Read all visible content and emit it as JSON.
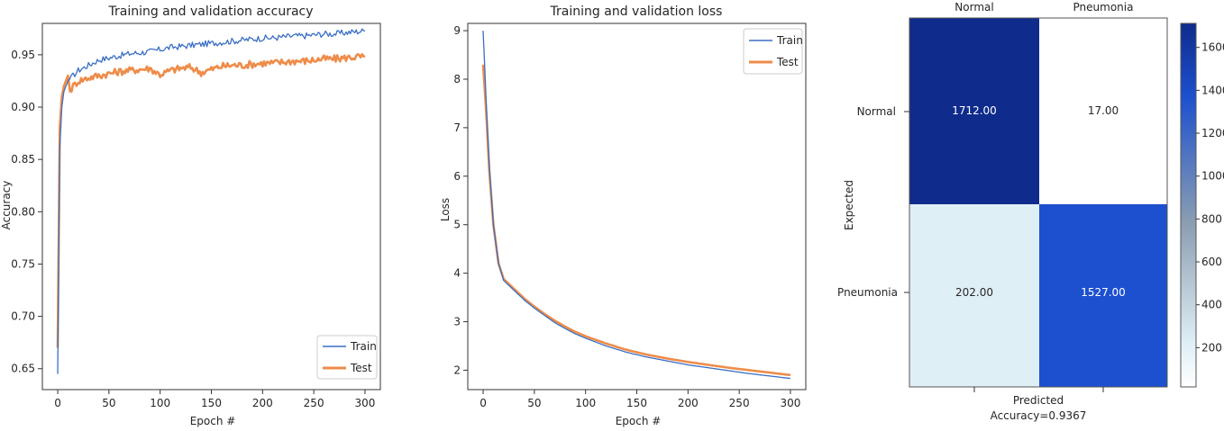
{
  "chart_data": [
    {
      "type": "line",
      "title": "Training and validation accuracy",
      "xlabel": "Epoch #",
      "ylabel": "Accuracy",
      "xlim": [
        -15,
        315
      ],
      "ylim": [
        0.63,
        0.98
      ],
      "xticks": [
        "0",
        "50",
        "100",
        "150",
        "200",
        "250",
        "300"
      ],
      "yticks": [
        "0.65",
        "0.70",
        "0.75",
        "0.80",
        "0.85",
        "0.90",
        "0.95"
      ],
      "legend": "lower-right",
      "series": [
        {
          "name": "Train",
          "color": "#3a6fc4",
          "x": [
            0,
            2,
            4,
            6,
            8,
            10,
            15,
            20,
            30,
            40,
            50,
            60,
            70,
            80,
            90,
            100,
            110,
            120,
            130,
            140,
            150,
            160,
            170,
            180,
            190,
            200,
            210,
            220,
            230,
            240,
            250,
            260,
            270,
            280,
            290,
            300
          ],
          "y": [
            0.645,
            0.86,
            0.9,
            0.915,
            0.92,
            0.925,
            0.93,
            0.935,
            0.94,
            0.945,
            0.947,
            0.949,
            0.951,
            0.952,
            0.953,
            0.955,
            0.957,
            0.958,
            0.959,
            0.96,
            0.961,
            0.962,
            0.963,
            0.964,
            0.965,
            0.966,
            0.966,
            0.967,
            0.968,
            0.968,
            0.969,
            0.97,
            0.97,
            0.971,
            0.972,
            0.973
          ]
        },
        {
          "name": "Test",
          "color": "#ee8c49",
          "x": [
            0,
            2,
            4,
            6,
            8,
            10,
            12,
            15,
            20,
            30,
            40,
            50,
            60,
            70,
            80,
            90,
            100,
            110,
            120,
            130,
            140,
            150,
            160,
            170,
            180,
            190,
            200,
            210,
            220,
            230,
            240,
            250,
            260,
            270,
            280,
            290,
            300
          ],
          "y": [
            0.67,
            0.88,
            0.91,
            0.92,
            0.925,
            0.93,
            0.915,
            0.92,
            0.925,
            0.928,
            0.93,
            0.932,
            0.934,
            0.935,
            0.936,
            0.937,
            0.931,
            0.935,
            0.937,
            0.938,
            0.933,
            0.936,
            0.939,
            0.94,
            0.94,
            0.941,
            0.942,
            0.942,
            0.943,
            0.944,
            0.944,
            0.945,
            0.946,
            0.946,
            0.947,
            0.948,
            0.948
          ]
        }
      ]
    },
    {
      "type": "line",
      "title": "Training and validation loss",
      "xlabel": "Epoch #",
      "ylabel": "Loss",
      "xlim": [
        -15,
        315
      ],
      "ylim": [
        1.6,
        9.15
      ],
      "xticks": [
        "0",
        "50",
        "100",
        "150",
        "200",
        "250",
        "300"
      ],
      "yticks": [
        "2",
        "3",
        "4",
        "5",
        "6",
        "7",
        "8",
        "9"
      ],
      "legend": "upper-right",
      "series": [
        {
          "name": "Train",
          "color": "#3a6fc4",
          "x": [
            0,
            3,
            6,
            10,
            15,
            20,
            30,
            40,
            50,
            60,
            70,
            80,
            90,
            100,
            120,
            140,
            160,
            180,
            200,
            220,
            240,
            260,
            280,
            300
          ],
          "y": [
            9.0,
            7.5,
            6.2,
            5.0,
            4.2,
            3.85,
            3.65,
            3.45,
            3.28,
            3.13,
            2.98,
            2.86,
            2.75,
            2.66,
            2.5,
            2.37,
            2.27,
            2.19,
            2.11,
            2.05,
            1.99,
            1.93,
            1.88,
            1.83
          ]
        },
        {
          "name": "Test",
          "color": "#ee8c49",
          "x": [
            0,
            3,
            6,
            10,
            15,
            20,
            30,
            40,
            50,
            60,
            70,
            80,
            90,
            100,
            120,
            140,
            160,
            180,
            200,
            220,
            240,
            260,
            280,
            300
          ],
          "y": [
            8.3,
            7.3,
            6.1,
            5.0,
            4.2,
            3.88,
            3.68,
            3.48,
            3.31,
            3.16,
            3.02,
            2.9,
            2.79,
            2.7,
            2.55,
            2.42,
            2.32,
            2.24,
            2.17,
            2.11,
            2.05,
            2.0,
            1.95,
            1.9
          ]
        }
      ]
    },
    {
      "type": "heatmap",
      "xlabel": "Predicted",
      "ylabel": "Expected",
      "annotation": "Accuracy=0.9367",
      "x_categories": [
        "Normal",
        "Pneumonia"
      ],
      "y_categories": [
        "Normal",
        "Pneumonia"
      ],
      "values": [
        [
          "1712.00",
          "17.00"
        ],
        [
          "202.00",
          "1527.00"
        ]
      ],
      "colorbar_range": [
        17,
        1712
      ],
      "colorbar_ticks": [
        "200",
        "400",
        "600",
        "800",
        "1000",
        "1200",
        "1400",
        "1600"
      ],
      "colormap": [
        "#ffffff",
        "#dfeff6",
        "#8b9eb1",
        "#1c50ce",
        "#0f2b8c"
      ]
    }
  ]
}
